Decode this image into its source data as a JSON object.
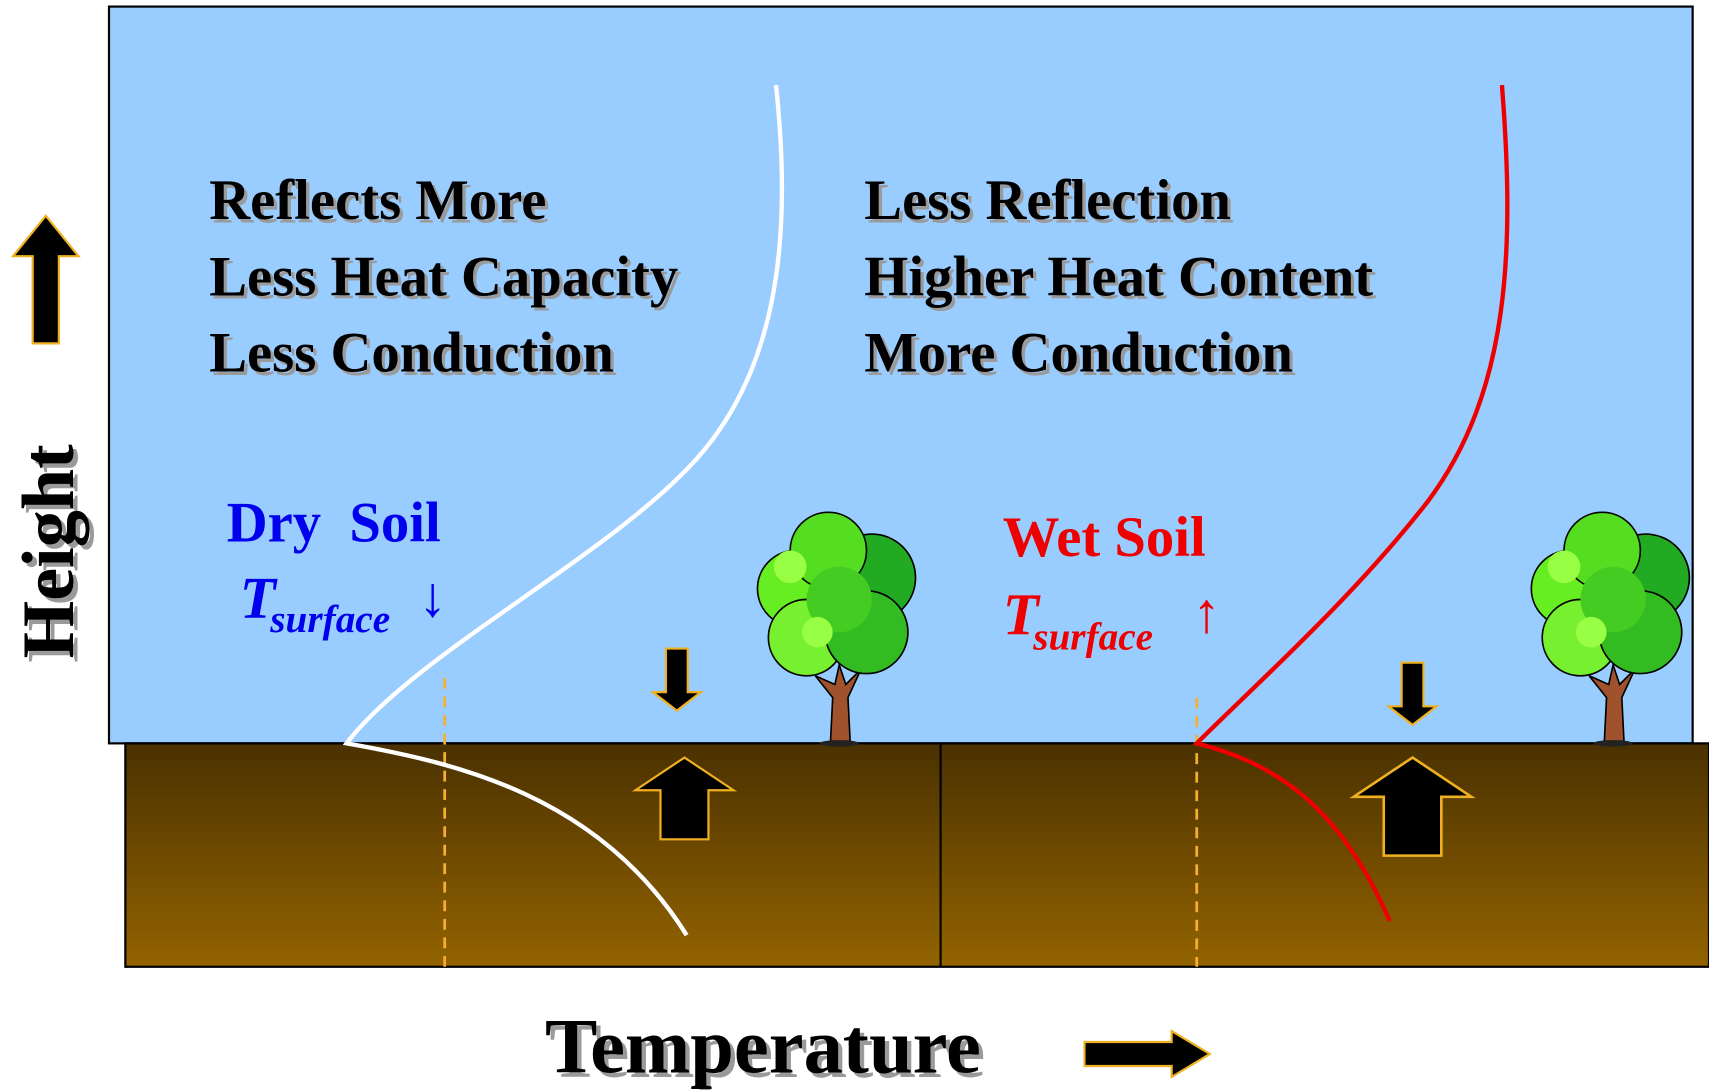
{
  "left_panel": {
    "lines": [
      "Reflects More",
      "Less Heat Capacity",
      "Less Conduction"
    ],
    "label": "Dry  Soil",
    "surface_symbol": "T",
    "surface_subscript": "surface",
    "trend": "↓"
  },
  "right_panel": {
    "lines": [
      "Less Reflection",
      "Higher Heat Content",
      "More Conduction"
    ],
    "label": "Wet Soil",
    "surface_symbol": "T",
    "surface_subscript": "surface",
    "trend": "↑"
  },
  "axes": {
    "y_label": "Height",
    "x_label": "Temperature"
  }
}
